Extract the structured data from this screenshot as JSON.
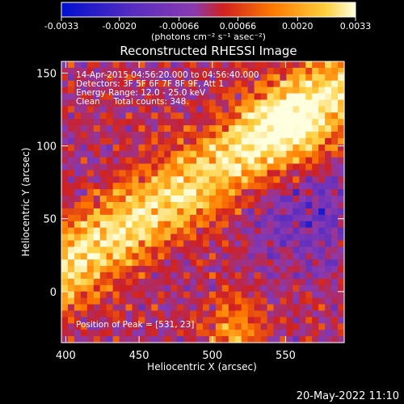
{
  "chart_data": {
    "type": "heatmap",
    "title": "Reconstructed RHESSI Image",
    "xlabel": "Heliocentric X (arcsec)",
    "ylabel": "Heliocentric Y (arcsec)",
    "xlim": [
      397,
      590
    ],
    "ylim": [
      -35,
      158
    ],
    "x_ticks": [
      400,
      450,
      500,
      550
    ],
    "y_ticks": [
      0,
      50,
      100,
      150
    ],
    "colorbar": {
      "range": [
        -0.0033,
        0.0033
      ],
      "ticks": [
        -0.0033,
        -0.002,
        -0.00066,
        0.00066,
        0.002,
        0.0033
      ],
      "tick_labels": [
        "-0.0033",
        "-0.0020",
        "-0.00066",
        "0.00066",
        "0.0020",
        "0.0033"
      ],
      "unit_label": "(photons cm⁻² s⁻¹ asec⁻²)",
      "colors": [
        "#0010d0",
        "#5a2dc0",
        "#8a3ab0",
        "#d02020",
        "#ff7a00",
        "#ffd040",
        "#ffffe0"
      ]
    },
    "annotations": {
      "time_range": "14-Apr-2015 04:56:20.000 to 04:56:40.000",
      "detectors": "Detectors: 3F 5F 6F 7F 8F 9F, Att 1",
      "energy": "Energy Range: 12.0 - 25.0 keV",
      "clean": "Clean     Total counts: 348.",
      "peak": "Position of Peak = [531, 23]"
    },
    "peak_position": [
      531,
      23
    ]
  },
  "footer": {
    "date": "20-May-2022 11:10"
  }
}
